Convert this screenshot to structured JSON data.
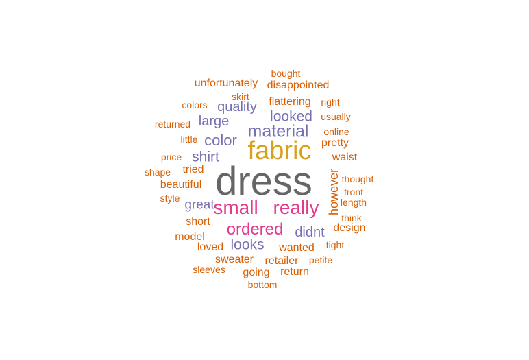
{
  "chart_data": {
    "type": "wordcloud",
    "colors": {
      "tier1": "#666666",
      "tier2": "#D6A21C",
      "tier3": "#E33A8C",
      "tier4": "#7570B3",
      "tier5": "#D95F02"
    },
    "words": [
      {
        "text": "dress",
        "tier": "tier1"
      },
      {
        "text": "fabric",
        "tier": "tier2"
      },
      {
        "text": "small",
        "tier": "tier3"
      },
      {
        "text": "really",
        "tier": "tier3"
      },
      {
        "text": "ordered",
        "tier": "tier3"
      },
      {
        "text": "material",
        "tier": "tier4"
      },
      {
        "text": "color",
        "tier": "tier4"
      },
      {
        "text": "shirt",
        "tier": "tier4"
      },
      {
        "text": "quality",
        "tier": "tier4"
      },
      {
        "text": "large",
        "tier": "tier4"
      },
      {
        "text": "looked",
        "tier": "tier4"
      },
      {
        "text": "great",
        "tier": "tier4"
      },
      {
        "text": "looks",
        "tier": "tier4"
      },
      {
        "text": "didnt",
        "tier": "tier4"
      },
      {
        "text": "however",
        "tier": "tier5"
      },
      {
        "text": "unfortunately",
        "tier": "tier5"
      },
      {
        "text": "disappointed",
        "tier": "tier5"
      },
      {
        "text": "bought",
        "tier": "tier5"
      },
      {
        "text": "skirt",
        "tier": "tier5"
      },
      {
        "text": "flattering",
        "tier": "tier5"
      },
      {
        "text": "right",
        "tier": "tier5"
      },
      {
        "text": "colors",
        "tier": "tier5"
      },
      {
        "text": "usually",
        "tier": "tier5"
      },
      {
        "text": "returned",
        "tier": "tier5"
      },
      {
        "text": "online",
        "tier": "tier5"
      },
      {
        "text": "little",
        "tier": "tier5"
      },
      {
        "text": "pretty",
        "tier": "tier5"
      },
      {
        "text": "price",
        "tier": "tier5"
      },
      {
        "text": "waist",
        "tier": "tier5"
      },
      {
        "text": "tried",
        "tier": "tier5"
      },
      {
        "text": "shape",
        "tier": "tier5"
      },
      {
        "text": "thought",
        "tier": "tier5"
      },
      {
        "text": "beautiful",
        "tier": "tier5"
      },
      {
        "text": "front",
        "tier": "tier5"
      },
      {
        "text": "style",
        "tier": "tier5"
      },
      {
        "text": "length",
        "tier": "tier5"
      },
      {
        "text": "think",
        "tier": "tier5"
      },
      {
        "text": "short",
        "tier": "tier5"
      },
      {
        "text": "design",
        "tier": "tier5"
      },
      {
        "text": "model",
        "tier": "tier5"
      },
      {
        "text": "loved",
        "tier": "tier5"
      },
      {
        "text": "wanted",
        "tier": "tier5"
      },
      {
        "text": "tight",
        "tier": "tier5"
      },
      {
        "text": "sweater",
        "tier": "tier5"
      },
      {
        "text": "retailer",
        "tier": "tier5"
      },
      {
        "text": "petite",
        "tier": "tier5"
      },
      {
        "text": "sleeves",
        "tier": "tier5"
      },
      {
        "text": "going",
        "tier": "tier5"
      },
      {
        "text": "return",
        "tier": "tier5"
      },
      {
        "text": "bottom",
        "tier": "tier5"
      }
    ]
  }
}
